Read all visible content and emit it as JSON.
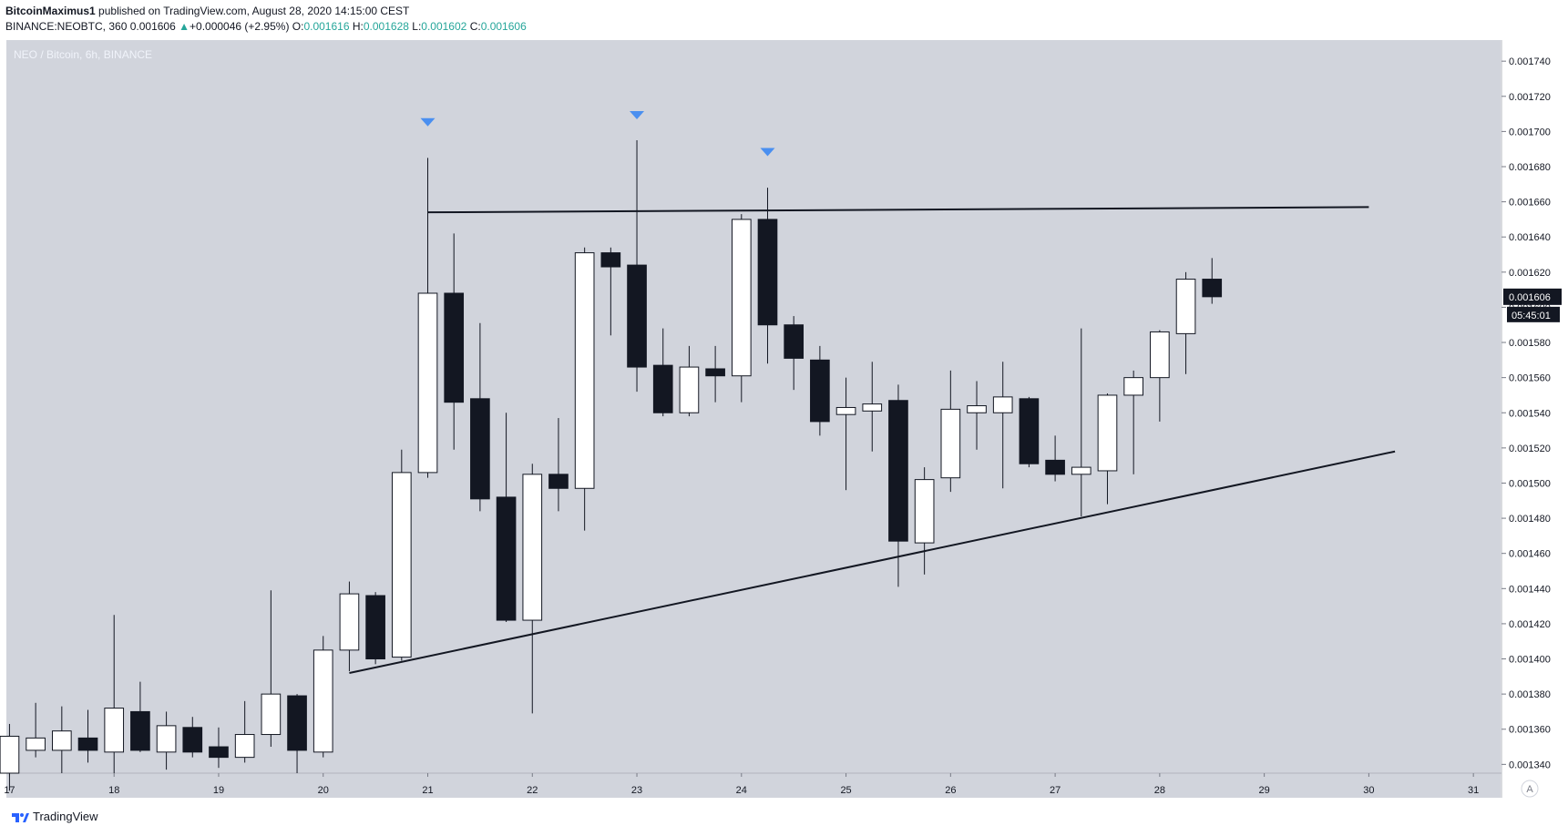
{
  "header": {
    "author": "BitcoinMaximus1",
    "published": "published on TradingView.com, August 28, 2020 14:15:00 CEST",
    "symbol": "BINANCE:NEOBTC, 360",
    "last": "0.001606",
    "change_arrow": "▲",
    "change": "+0.000046 (+2.95%)",
    "o_label": "O:",
    "o": "0.001616",
    "h_label": "H:",
    "h": "0.001628",
    "l_label": "L:",
    "l": "0.001602",
    "c_label": "C:",
    "c": "0.001606"
  },
  "footer": {
    "brand": "TradingView",
    "logo_icon": "tradingview-logo-icon"
  },
  "colors": {
    "background": "#d1d4dc",
    "bull_fill": "#ffffff",
    "bear_fill": "#131722",
    "marker": "#4a8ff0",
    "price_tag": "#131722"
  },
  "chart_data": {
    "type": "candlestick",
    "title": "NEO / Bitcoin, 6h, BINANCE",
    "x_ticks": [
      "17",
      "18",
      "19",
      "20",
      "21",
      "22",
      "23",
      "24",
      "25",
      "26",
      "27",
      "28",
      "29",
      "30",
      "31"
    ],
    "y_ticks": [
      "0.001740",
      "0.001720",
      "0.001700",
      "0.001680",
      "0.001660",
      "0.001640",
      "0.001620",
      "0.001600",
      "0.001580",
      "0.001560",
      "0.001540",
      "0.001520",
      "0.001500",
      "0.001480",
      "0.001460",
      "0.001440",
      "0.001420",
      "0.001400",
      "0.001380",
      "0.001360",
      "0.001340"
    ],
    "ylim": [
      0.001335,
      0.001752
    ],
    "xlim": [
      16.97,
      31.26
    ],
    "current_price_label": "0.001606",
    "countdown_label": "05:45:01",
    "scale_button": "A",
    "candles": [
      {
        "x": 17.0,
        "o": 0.001335,
        "h": 0.001363,
        "l": 0.001325,
        "c": 0.001356
      },
      {
        "x": 17.25,
        "o": 0.001348,
        "h": 0.001375,
        "l": 0.001344,
        "c": 0.001355
      },
      {
        "x": 17.5,
        "o": 0.001348,
        "h": 0.001373,
        "l": 0.001335,
        "c": 0.001359
      },
      {
        "x": 17.75,
        "o": 0.001355,
        "h": 0.001371,
        "l": 0.001341,
        "c": 0.001348
      },
      {
        "x": 18.0,
        "o": 0.001347,
        "h": 0.001425,
        "l": 0.001335,
        "c": 0.001372
      },
      {
        "x": 18.25,
        "o": 0.00137,
        "h": 0.001387,
        "l": 0.001347,
        "c": 0.001348
      },
      {
        "x": 18.5,
        "o": 0.001347,
        "h": 0.00137,
        "l": 0.001337,
        "c": 0.001362
      },
      {
        "x": 18.75,
        "o": 0.001361,
        "h": 0.001367,
        "l": 0.001344,
        "c": 0.001347
      },
      {
        "x": 19.0,
        "o": 0.00135,
        "h": 0.001361,
        "l": 0.001338,
        "c": 0.001344
      },
      {
        "x": 19.25,
        "o": 0.001344,
        "h": 0.001376,
        "l": 0.001341,
        "c": 0.001357
      },
      {
        "x": 19.5,
        "o": 0.001357,
        "h": 0.001439,
        "l": 0.00135,
        "c": 0.00138
      },
      {
        "x": 19.75,
        "o": 0.001379,
        "h": 0.00138,
        "l": 0.001335,
        "c": 0.001348
      },
      {
        "x": 20.0,
        "o": 0.001347,
        "h": 0.001413,
        "l": 0.001344,
        "c": 0.001405
      },
      {
        "x": 20.25,
        "o": 0.001405,
        "h": 0.001444,
        "l": 0.001393,
        "c": 0.001437
      },
      {
        "x": 20.5,
        "o": 0.001436,
        "h": 0.001438,
        "l": 0.001397,
        "c": 0.0014
      },
      {
        "x": 20.75,
        "o": 0.001401,
        "h": 0.001519,
        "l": 0.001399,
        "c": 0.001506
      },
      {
        "x": 21.0,
        "o": 0.001506,
        "h": 0.001685,
        "l": 0.001503,
        "c": 0.001608
      },
      {
        "x": 21.25,
        "o": 0.001608,
        "h": 0.001642,
        "l": 0.001519,
        "c": 0.001546
      },
      {
        "x": 21.5,
        "o": 0.001548,
        "h": 0.001591,
        "l": 0.001484,
        "c": 0.001491
      },
      {
        "x": 21.75,
        "o": 0.001492,
        "h": 0.00154,
        "l": 0.001421,
        "c": 0.001422
      },
      {
        "x": 22.0,
        "o": 0.001422,
        "h": 0.001511,
        "l": 0.001369,
        "c": 0.001505
      },
      {
        "x": 22.25,
        "o": 0.001505,
        "h": 0.001537,
        "l": 0.001484,
        "c": 0.001497
      },
      {
        "x": 22.5,
        "o": 0.001497,
        "h": 0.001634,
        "l": 0.001473,
        "c": 0.001631
      },
      {
        "x": 22.75,
        "o": 0.001631,
        "h": 0.001634,
        "l": 0.001584,
        "c": 0.001623
      },
      {
        "x": 23.0,
        "o": 0.001624,
        "h": 0.001695,
        "l": 0.001552,
        "c": 0.001566
      },
      {
        "x": 23.25,
        "o": 0.001567,
        "h": 0.001588,
        "l": 0.001538,
        "c": 0.00154
      },
      {
        "x": 23.5,
        "o": 0.00154,
        "h": 0.001578,
        "l": 0.001538,
        "c": 0.001566
      },
      {
        "x": 23.75,
        "o": 0.001565,
        "h": 0.001578,
        "l": 0.001546,
        "c": 0.001561
      },
      {
        "x": 24.0,
        "o": 0.001561,
        "h": 0.001653,
        "l": 0.001546,
        "c": 0.00165
      },
      {
        "x": 24.25,
        "o": 0.00165,
        "h": 0.001668,
        "l": 0.001568,
        "c": 0.00159
      },
      {
        "x": 24.5,
        "o": 0.00159,
        "h": 0.001595,
        "l": 0.001553,
        "c": 0.001571
      },
      {
        "x": 24.75,
        "o": 0.00157,
        "h": 0.001578,
        "l": 0.001527,
        "c": 0.001535
      },
      {
        "x": 25.0,
        "o": 0.001539,
        "h": 0.00156,
        "l": 0.001496,
        "c": 0.001543
      },
      {
        "x": 25.25,
        "o": 0.001541,
        "h": 0.001569,
        "l": 0.001518,
        "c": 0.001545
      },
      {
        "x": 25.5,
        "o": 0.001547,
        "h": 0.001556,
        "l": 0.001441,
        "c": 0.001467
      },
      {
        "x": 25.75,
        "o": 0.001466,
        "h": 0.001509,
        "l": 0.001448,
        "c": 0.001502
      },
      {
        "x": 26.0,
        "o": 0.001503,
        "h": 0.001564,
        "l": 0.001495,
        "c": 0.001542
      },
      {
        "x": 26.25,
        "o": 0.00154,
        "h": 0.001558,
        "l": 0.001519,
        "c": 0.001544
      },
      {
        "x": 26.5,
        "o": 0.00154,
        "h": 0.001569,
        "l": 0.001497,
        "c": 0.001549
      },
      {
        "x": 26.75,
        "o": 0.001548,
        "h": 0.001549,
        "l": 0.001509,
        "c": 0.001511
      },
      {
        "x": 27.0,
        "o": 0.001513,
        "h": 0.001527,
        "l": 0.001501,
        "c": 0.001505
      },
      {
        "x": 27.25,
        "o": 0.001505,
        "h": 0.001588,
        "l": 0.001481,
        "c": 0.001509
      },
      {
        "x": 27.5,
        "o": 0.001507,
        "h": 0.001551,
        "l": 0.001488,
        "c": 0.00155
      },
      {
        "x": 27.75,
        "o": 0.00155,
        "h": 0.001564,
        "l": 0.001505,
        "c": 0.00156
      },
      {
        "x": 28.0,
        "o": 0.00156,
        "h": 0.001587,
        "l": 0.001535,
        "c": 0.001586
      },
      {
        "x": 28.25,
        "o": 0.001585,
        "h": 0.00162,
        "l": 0.001562,
        "c": 0.001616
      },
      {
        "x": 28.5,
        "o": 0.001616,
        "h": 0.001628,
        "l": 0.001602,
        "c": 0.001606
      }
    ],
    "resistance_line": {
      "x1": 21.0,
      "y1": 0.001654,
      "x2": 30.0,
      "y2": 0.001657
    },
    "support_line": {
      "x1": 20.25,
      "y1": 0.001392,
      "x2": 30.25,
      "y2": 0.001518
    },
    "top_markers": [
      {
        "x": 21.0,
        "y": 0.001705
      },
      {
        "x": 23.0,
        "y": 0.001709
      },
      {
        "x": 24.25,
        "y": 0.001688
      }
    ]
  }
}
